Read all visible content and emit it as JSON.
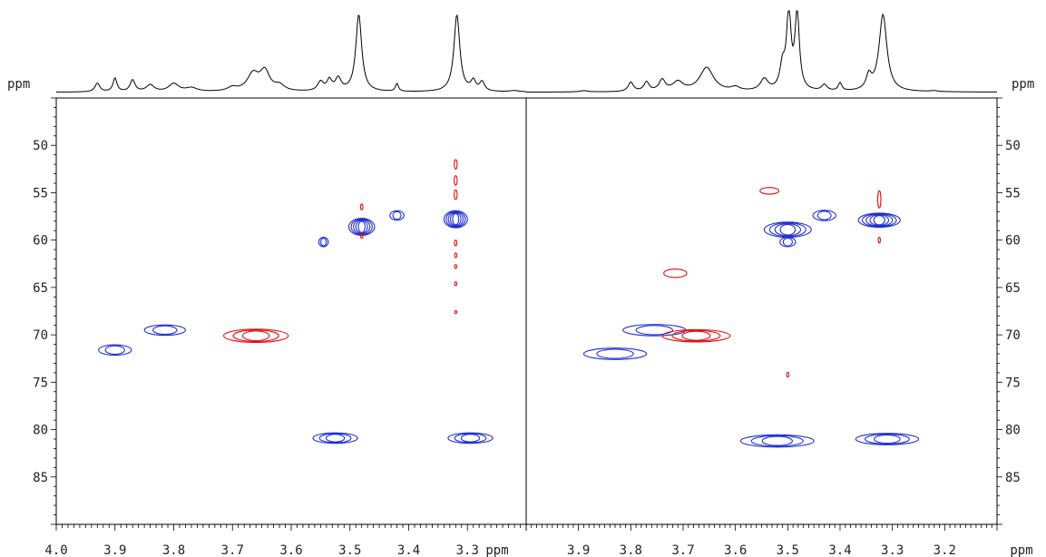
{
  "chart_data": [
    {
      "type": "contour",
      "panel": "left",
      "x_unit_label": "ppm",
      "y_unit_label": "ppm",
      "xlim": [
        4.0,
        3.2
      ],
      "ylim": [
        45,
        90
      ],
      "x_ticks": [
        4.0,
        3.9,
        3.8,
        3.7,
        3.6,
        3.5,
        3.4,
        3.3
      ],
      "y_ticks": [
        50,
        55,
        60,
        65,
        70,
        75,
        80,
        85
      ],
      "series": [
        {
          "color": "#1f2fd0",
          "peaks": [
            {
              "x": 3.9,
              "y": 71.6,
              "w": 0.028,
              "h": 0.55,
              "rings": 2
            },
            {
              "x": 3.815,
              "y": 69.5,
              "w": 0.035,
              "h": 0.55,
              "rings": 2
            },
            {
              "x": 3.545,
              "y": 60.2,
              "w": 0.008,
              "h": 0.5,
              "rings": 2
            },
            {
              "x": 3.48,
              "y": 58.6,
              "w": 0.022,
              "h": 0.9,
              "rings": 5
            },
            {
              "x": 3.42,
              "y": 57.4,
              "w": 0.012,
              "h": 0.5,
              "rings": 2
            },
            {
              "x": 3.32,
              "y": 57.8,
              "w": 0.02,
              "h": 0.9,
              "rings": 5
            },
            {
              "x": 3.525,
              "y": 80.9,
              "w": 0.038,
              "h": 0.55,
              "rings": 3
            },
            {
              "x": 3.295,
              "y": 80.9,
              "w": 0.038,
              "h": 0.55,
              "rings": 3
            }
          ]
        },
        {
          "color": "#e01010",
          "peaks": [
            {
              "x": 3.66,
              "y": 70.1,
              "w": 0.055,
              "h": 0.7,
              "rings": 3
            },
            {
              "x": 3.48,
              "y": 56.5,
              "w": 0.002,
              "h": 0.3,
              "rings": 1
            },
            {
              "x": 3.48,
              "y": 59.5,
              "w": 0.002,
              "h": 0.3,
              "rings": 1
            },
            {
              "x": 3.32,
              "y": 52.0,
              "w": 0.0025,
              "h": 0.5,
              "rings": 1
            },
            {
              "x": 3.32,
              "y": 53.7,
              "w": 0.0025,
              "h": 0.5,
              "rings": 1
            },
            {
              "x": 3.32,
              "y": 55.2,
              "w": 0.0025,
              "h": 0.5,
              "rings": 1
            },
            {
              "x": 3.32,
              "y": 60.3,
              "w": 0.002,
              "h": 0.3,
              "rings": 1
            },
            {
              "x": 3.32,
              "y": 61.6,
              "w": 0.0015,
              "h": 0.25,
              "rings": 1
            },
            {
              "x": 3.32,
              "y": 62.8,
              "w": 0.0015,
              "h": 0.2,
              "rings": 1
            },
            {
              "x": 3.32,
              "y": 64.6,
              "w": 0.0015,
              "h": 0.2,
              "rings": 1
            },
            {
              "x": 3.32,
              "y": 67.6,
              "w": 0.0015,
              "h": 0.15,
              "rings": 1
            }
          ]
        }
      ],
      "projection_peaks": [
        {
          "x": 3.93,
          "h": 0.28,
          "w": 0.005
        },
        {
          "x": 3.9,
          "h": 0.44,
          "w": 0.004
        },
        {
          "x": 3.87,
          "h": 0.38,
          "w": 0.005
        },
        {
          "x": 3.84,
          "h": 0.22,
          "w": 0.008
        },
        {
          "x": 3.8,
          "h": 0.26,
          "w": 0.01
        },
        {
          "x": 3.77,
          "h": 0.12,
          "w": 0.012
        },
        {
          "x": 3.7,
          "h": 0.12,
          "w": 0.01
        },
        {
          "x": 3.665,
          "h": 0.55,
          "w": 0.012
        },
        {
          "x": 3.645,
          "h": 0.62,
          "w": 0.01
        },
        {
          "x": 3.62,
          "h": 0.18,
          "w": 0.01
        },
        {
          "x": 3.55,
          "h": 0.3,
          "w": 0.006
        },
        {
          "x": 3.535,
          "h": 0.34,
          "w": 0.005
        },
        {
          "x": 3.52,
          "h": 0.4,
          "w": 0.006
        },
        {
          "x": 3.485,
          "h": 2.5,
          "w": 0.006
        },
        {
          "x": 3.42,
          "h": 0.26,
          "w": 0.003
        },
        {
          "x": 3.318,
          "h": 2.5,
          "w": 0.006
        },
        {
          "x": 3.29,
          "h": 0.32,
          "w": 0.005
        },
        {
          "x": 3.275,
          "h": 0.3,
          "w": 0.005
        },
        {
          "x": 3.22,
          "h": 0.04,
          "w": 0.01
        }
      ]
    },
    {
      "type": "contour",
      "panel": "right",
      "x_unit_label": "ppm",
      "y_unit_label": "ppm",
      "xlim": [
        4.0,
        3.1
      ],
      "ylim": [
        45,
        90
      ],
      "x_ticks": [
        3.9,
        3.8,
        3.7,
        3.6,
        3.5,
        3.4,
        3.3,
        3.2
      ],
      "y_ticks": [
        50,
        55,
        60,
        65,
        70,
        75,
        80,
        85
      ],
      "series": [
        {
          "color": "#1f2fd0",
          "peaks": [
            {
              "x": 3.83,
              "y": 72.0,
              "w": 0.06,
              "h": 0.6,
              "rings": 2
            },
            {
              "x": 3.755,
              "y": 69.5,
              "w": 0.06,
              "h": 0.6,
              "rings": 2
            },
            {
              "x": 3.5,
              "y": 58.9,
              "w": 0.045,
              "h": 0.8,
              "rings": 4
            },
            {
              "x": 3.5,
              "y": 60.2,
              "w": 0.015,
              "h": 0.5,
              "rings": 2
            },
            {
              "x": 3.43,
              "y": 57.4,
              "w": 0.022,
              "h": 0.55,
              "rings": 2
            },
            {
              "x": 3.325,
              "y": 57.9,
              "w": 0.04,
              "h": 0.75,
              "rings": 5
            },
            {
              "x": 3.52,
              "y": 81.2,
              "w": 0.07,
              "h": 0.65,
              "rings": 3
            },
            {
              "x": 3.31,
              "y": 81.0,
              "w": 0.06,
              "h": 0.6,
              "rings": 3
            }
          ]
        },
        {
          "color": "#e01010",
          "peaks": [
            {
              "x": 3.675,
              "y": 70.1,
              "w": 0.065,
              "h": 0.65,
              "rings": 3
            },
            {
              "x": 3.715,
              "y": 63.5,
              "w": 0.022,
              "h": 0.45,
              "rings": 1
            },
            {
              "x": 3.535,
              "y": 54.8,
              "w": 0.018,
              "h": 0.35,
              "rings": 1
            },
            {
              "x": 3.325,
              "y": 55.7,
              "w": 0.003,
              "h": 0.9,
              "rings": 1
            },
            {
              "x": 3.325,
              "y": 60.0,
              "w": 0.002,
              "h": 0.3,
              "rings": 1
            },
            {
              "x": 3.5,
              "y": 74.2,
              "w": 0.0015,
              "h": 0.25,
              "rings": 1
            }
          ]
        }
      ],
      "projection_peaks": [
        {
          "x": 3.89,
          "h": 0.04,
          "w": 0.01
        },
        {
          "x": 3.8,
          "h": 0.3,
          "w": 0.006
        },
        {
          "x": 3.77,
          "h": 0.3,
          "w": 0.006
        },
        {
          "x": 3.74,
          "h": 0.36,
          "w": 0.007
        },
        {
          "x": 3.71,
          "h": 0.3,
          "w": 0.012
        },
        {
          "x": 3.655,
          "h": 0.78,
          "w": 0.016
        },
        {
          "x": 3.6,
          "h": 0.12,
          "w": 0.01
        },
        {
          "x": 3.545,
          "h": 0.38,
          "w": 0.009
        },
        {
          "x": 3.51,
          "h": 0.75,
          "w": 0.006
        },
        {
          "x": 3.498,
          "h": 2.5,
          "w": 0.005
        },
        {
          "x": 3.482,
          "h": 2.5,
          "w": 0.005
        },
        {
          "x": 3.43,
          "h": 0.2,
          "w": 0.006
        },
        {
          "x": 3.4,
          "h": 0.26,
          "w": 0.004
        },
        {
          "x": 3.345,
          "h": 0.45,
          "w": 0.006
        },
        {
          "x": 3.318,
          "h": 2.5,
          "w": 0.009
        },
        {
          "x": 3.22,
          "h": 0.03,
          "w": 0.01
        }
      ]
    }
  ]
}
